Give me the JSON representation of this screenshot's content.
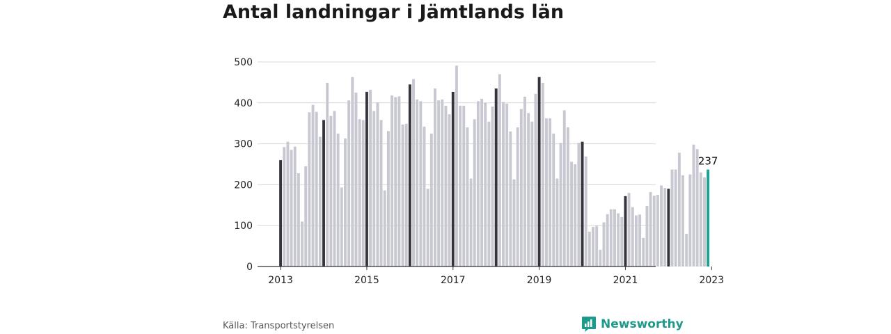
{
  "title": "Antal landningar i Jämtlands län",
  "source": "Källa: Transportstyrelsen",
  "brand": "Newsworthy",
  "chart_data": {
    "type": "bar",
    "start_year": 2013,
    "ylim": [
      0,
      500
    ],
    "yticks": [
      0,
      100,
      200,
      300,
      400,
      500
    ],
    "xticks": [
      "2013",
      "2015",
      "2017",
      "2019",
      "2021",
      "2023"
    ],
    "series": [
      {
        "values": [
          260,
          292,
          305,
          285,
          293,
          228,
          110,
          245,
          377,
          395,
          378,
          317,
          358,
          449,
          368,
          380,
          325,
          193,
          313,
          406,
          463,
          425,
          360,
          358,
          427,
          432,
          380,
          401,
          358,
          186,
          331,
          418,
          414,
          416,
          347,
          349,
          445,
          458,
          408,
          404,
          342,
          190,
          325,
          435,
          406,
          408,
          393,
          372,
          427,
          491,
          393,
          393,
          340,
          215,
          360,
          404,
          410,
          400,
          354,
          391,
          435,
          470,
          402,
          398,
          330,
          213,
          340,
          385,
          415,
          375,
          354,
          422,
          463,
          449,
          362,
          362,
          325,
          215,
          302,
          382,
          340,
          256,
          250,
          302,
          305,
          269,
          85,
          97,
          100,
          41,
          108,
          128,
          140,
          140,
          130,
          121,
          172,
          180,
          145,
          125,
          127,
          70,
          148,
          182,
          173,
          175,
          198,
          192,
          190,
          237,
          237,
          278,
          223,
          80,
          225,
          298,
          287,
          230,
          218,
          237
        ]
      }
    ],
    "last_value_label": "237",
    "colors": {
      "bar": "#c8c8d2",
      "january": "#35343d",
      "last": "#19a394"
    }
  }
}
